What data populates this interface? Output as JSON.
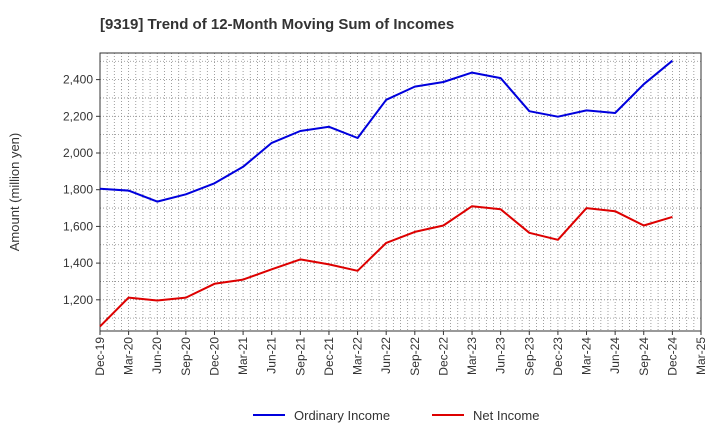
{
  "chart_data": {
    "type": "line",
    "title": "[9319]  Trend of 12-Month Moving Sum of Incomes",
    "xlabel": "",
    "ylabel": "Amount (million yen)",
    "ylim": [
      1030,
      2545
    ],
    "yticks": [
      1200,
      1400,
      1600,
      1800,
      2000,
      2200,
      2400
    ],
    "ytick_labels": [
      "1,200",
      "1,400",
      "1,600",
      "1,800",
      "2,000",
      "2,200",
      "2,400"
    ],
    "categories": [
      "Dec-19",
      "Mar-20",
      "Jun-20",
      "Sep-20",
      "Dec-20",
      "Mar-21",
      "Jun-21",
      "Sep-21",
      "Dec-21",
      "Mar-22",
      "Jun-22",
      "Sep-22",
      "Dec-22",
      "Mar-23",
      "Jun-23",
      "Sep-23",
      "Dec-23",
      "Mar-24",
      "Jun-24",
      "Sep-24",
      "Dec-24",
      "Mar-25"
    ],
    "grid": true,
    "legend_position": "bottom-center",
    "series": [
      {
        "name": "Ordinary Income",
        "color": "#0000dd",
        "values": [
          1805,
          1795,
          1735,
          1775,
          1835,
          1925,
          2055,
          2120,
          2143,
          2082,
          2290,
          2362,
          2387,
          2438,
          2408,
          2228,
          2198,
          2232,
          2218,
          2375,
          2503,
          null
        ]
      },
      {
        "name": "Net Income",
        "color": "#dd0000",
        "values": [
          1055,
          1212,
          1196,
          1212,
          1287,
          1310,
          1366,
          1420,
          1393,
          1358,
          1510,
          1570,
          1605,
          1710,
          1693,
          1565,
          1527,
          1700,
          1683,
          1605,
          1652,
          null
        ]
      }
    ]
  }
}
